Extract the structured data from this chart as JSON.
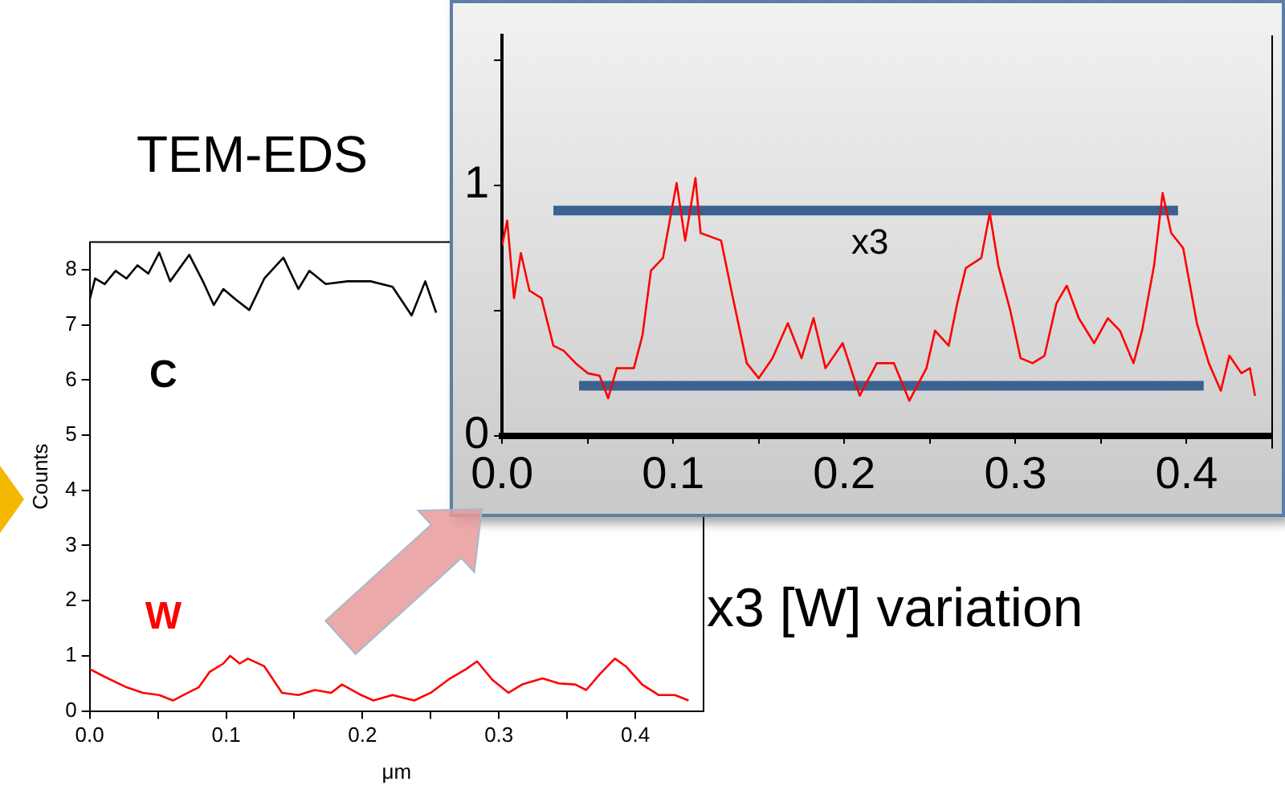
{
  "chart_data": [
    {
      "type": "line",
      "title": "TEM-EDS",
      "xlabel": "μm",
      "ylabel": "Counts",
      "xlim": [
        0,
        0.45
      ],
      "ylim": [
        0,
        8.5
      ],
      "xticks": [
        {
          "value": 0,
          "label": "0.0"
        },
        {
          "value": 0.05,
          "label": null
        },
        0.1,
        {
          "value": 0.15,
          "label": null
        },
        0.2,
        {
          "value": 0.25,
          "label": null
        },
        0.3,
        {
          "value": 0.35,
          "label": null
        },
        0.4
      ],
      "yticks": [
        0,
        1,
        2,
        3,
        4,
        5,
        6,
        7,
        8
      ],
      "grid": false,
      "legend": false,
      "marker": "none",
      "line_style": "solid",
      "series": [
        {
          "name": "C",
          "color": "#000000",
          "x": [
            0,
            0.004,
            0.011,
            0.019,
            0.027,
            0.035,
            0.043,
            0.051,
            0.059,
            0.073,
            0.083,
            0.091,
            0.098,
            0.107,
            0.117,
            0.128,
            0.142,
            0.153,
            0.161,
            0.173,
            0.189,
            0.206,
            0.222,
            0.236,
            0.246,
            0.254
          ],
          "values": [
            7.46,
            7.84,
            7.74,
            7.98,
            7.84,
            8.08,
            7.93,
            8.31,
            7.79,
            8.27,
            7.79,
            7.36,
            7.65,
            7.46,
            7.27,
            7.84,
            8.22,
            7.65,
            7.98,
            7.74,
            7.79,
            7.79,
            7.69,
            7.17,
            7.79,
            7.22
          ]
        },
        {
          "name": "W",
          "color": "#ff0000",
          "x": [
            0,
            0.011,
            0.027,
            0.039,
            0.051,
            0.061,
            0.072,
            0.08,
            0.088,
            0.098,
            0.103,
            0.11,
            0.116,
            0.128,
            0.141,
            0.153,
            0.165,
            0.177,
            0.185,
            0.198,
            0.208,
            0.222,
            0.238,
            0.25,
            0.263,
            0.276,
            0.284,
            0.295,
            0.307,
            0.317,
            0.332,
            0.344,
            0.356,
            0.364,
            0.374,
            0.385,
            0.393,
            0.405,
            0.417,
            0.429,
            0.439
          ],
          "values": [
            0.76,
            0.62,
            0.43,
            0.33,
            0.29,
            0.19,
            0.33,
            0.43,
            0.71,
            0.86,
            1.0,
            0.86,
            0.95,
            0.81,
            0.33,
            0.29,
            0.38,
            0.33,
            0.48,
            0.3,
            0.19,
            0.29,
            0.19,
            0.33,
            0.57,
            0.76,
            0.9,
            0.57,
            0.33,
            0.48,
            0.59,
            0.5,
            0.48,
            0.38,
            0.67,
            0.95,
            0.81,
            0.48,
            0.29,
            0.29,
            0.19
          ]
        }
      ]
    },
    {
      "type": "line",
      "xlim": [
        0,
        0.45
      ],
      "ylim": [
        0,
        1.6
      ],
      "xticks": [
        {
          "value": 0,
          "label": "0.0"
        },
        {
          "value": 0.05,
          "label": null
        },
        0.1,
        {
          "value": 0.15,
          "label": null
        },
        0.2,
        {
          "value": 0.25,
          "label": null
        },
        0.3,
        {
          "value": 0.35,
          "label": null
        },
        0.4
      ],
      "yticks": [
        0,
        {
          "value": 0.5,
          "label": null
        },
        1,
        {
          "value": 1.5,
          "label": null
        }
      ],
      "grid": false,
      "legend": false,
      "marker": "none",
      "line_style": "solid",
      "annotations": [
        "x3",
        "x3 [W] variation"
      ],
      "series": [
        {
          "color": "#ff0000",
          "x": [
            0,
            0.003,
            0.007,
            0.011,
            0.016,
            0.023,
            0.03,
            0.036,
            0.043,
            0.05,
            0.057,
            0.062,
            0.067,
            0.077,
            0.082,
            0.087,
            0.094,
            0.102,
            0.107,
            0.113,
            0.116,
            0.128,
            0.134,
            0.143,
            0.15,
            0.158,
            0.167,
            0.175,
            0.182,
            0.189,
            0.199,
            0.209,
            0.219,
            0.229,
            0.238,
            0.248,
            0.253,
            0.261,
            0.266,
            0.271,
            0.28,
            0.285,
            0.29,
            0.297,
            0.303,
            0.31,
            0.317,
            0.324,
            0.33,
            0.337,
            0.346,
            0.354,
            0.361,
            0.369,
            0.374,
            0.381,
            0.386,
            0.391,
            0.398,
            0.406,
            0.413,
            0.42,
            0.425,
            0.432,
            0.437,
            0.44
          ],
          "values": [
            0.76,
            0.86,
            0.55,
            0.73,
            0.58,
            0.55,
            0.36,
            0.34,
            0.29,
            0.25,
            0.24,
            0.15,
            0.27,
            0.27,
            0.4,
            0.66,
            0.71,
            1.01,
            0.78,
            1.03,
            0.81,
            0.78,
            0.58,
            0.29,
            0.23,
            0.31,
            0.45,
            0.31,
            0.47,
            0.27,
            0.37,
            0.16,
            0.29,
            0.29,
            0.14,
            0.27,
            0.42,
            0.36,
            0.53,
            0.67,
            0.71,
            0.89,
            0.68,
            0.5,
            0.31,
            0.29,
            0.32,
            0.53,
            0.6,
            0.47,
            0.37,
            0.47,
            0.42,
            0.29,
            0.42,
            0.68,
            0.97,
            0.81,
            0.75,
            0.45,
            0.29,
            0.18,
            0.32,
            0.25,
            0.27,
            0.16
          ]
        },
        {
          "color": "#3a6190",
          "x": [
            0.03,
            0.395
          ],
          "values": [
            0.9,
            0.9
          ]
        },
        {
          "color": "#3a6190",
          "x": [
            0.045,
            0.41
          ],
          "values": [
            0.2,
            0.2
          ]
        }
      ]
    }
  ]
}
